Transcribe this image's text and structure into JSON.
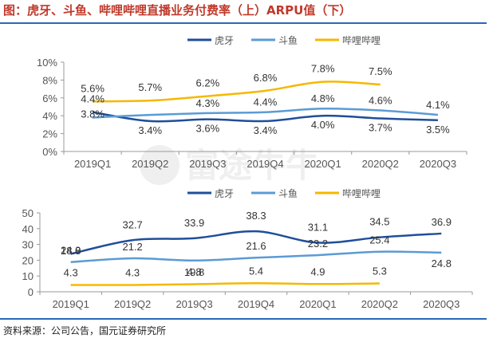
{
  "header": {
    "title": "图：虎牙、斗鱼、哔哩哔哩直播业务付费率（上）ARPU值（下）"
  },
  "footer": {
    "source": "资料来源：公司公告，国元证券研究所"
  },
  "watermark": "富途牛牛",
  "colors": {
    "huya": "#1f4e9a",
    "douyu": "#5b9bd5",
    "bilibili": "#f5b800",
    "axis": "#999999",
    "text": "#555555"
  },
  "chart_data": [
    {
      "type": "line",
      "title": "付费率",
      "categories": [
        "2019Q1",
        "2019Q2",
        "2019Q3",
        "2019Q4",
        "2020Q1",
        "2020Q2",
        "2020Q3"
      ],
      "ylim": [
        0,
        10
      ],
      "yticks": [
        0,
        2,
        4,
        6,
        8,
        10
      ],
      "ytick_labels": [
        "0%",
        "2%",
        "4%",
        "6%",
        "8%",
        "10%"
      ],
      "legend_position": "top",
      "series": [
        {
          "name": "虎牙",
          "values": [
            4.4,
            3.4,
            3.6,
            3.4,
            4.0,
            3.7,
            3.5
          ],
          "labels": [
            "4.4%",
            "3.4%",
            "3.6%",
            "3.4%",
            "4.0%",
            "3.7%",
            "3.5%"
          ]
        },
        {
          "name": "斗鱼",
          "values": [
            3.8,
            4.1,
            4.3,
            4.4,
            4.8,
            4.6,
            4.1
          ],
          "labels": [
            "3.8%",
            "",
            "4.3%",
            "4.4%",
            "4.8%",
            "4.6%",
            "4.1%"
          ]
        },
        {
          "name": "哔哩哔哩",
          "values": [
            5.6,
            5.7,
            6.2,
            6.8,
            7.8,
            7.5,
            null
          ],
          "labels": [
            "5.6%",
            "5.7%",
            "6.2%",
            "6.8%",
            "7.8%",
            "7.5%",
            ""
          ]
        }
      ]
    },
    {
      "type": "line",
      "title": "ARPU值",
      "categories": [
        "2019Q1",
        "2019Q2",
        "2019Q3",
        "2019Q4",
        "2020Q1",
        "2020Q2",
        "2020Q3"
      ],
      "ylim": [
        0,
        50
      ],
      "yticks": [
        0,
        10,
        20,
        30,
        40,
        50
      ],
      "ytick_labels": [
        "0",
        "10",
        "20",
        "30",
        "40",
        "50"
      ],
      "legend_position": "top",
      "series": [
        {
          "name": "虎牙",
          "values": [
            24.0,
            32.7,
            33.9,
            38.3,
            31.1,
            34.5,
            36.9
          ],
          "labels": [
            "24.0",
            "32.7",
            "33.9",
            "38.3",
            "31.1",
            "34.5",
            "36.9"
          ]
        },
        {
          "name": "斗鱼",
          "values": [
            18.8,
            21.2,
            19.8,
            21.6,
            23.2,
            25.4,
            24.8
          ],
          "labels": [
            "18.8",
            "21.2",
            "19.8",
            "21.6",
            "23.2",
            "25.4",
            "24.8"
          ]
        },
        {
          "name": "哔哩哔哩",
          "values": [
            4.3,
            4.3,
            4.8,
            5.4,
            4.9,
            5.3,
            null
          ],
          "labels": [
            "4.3",
            "4.3",
            "4.8",
            "5.4",
            "4.9",
            "5.3",
            ""
          ]
        }
      ]
    }
  ]
}
